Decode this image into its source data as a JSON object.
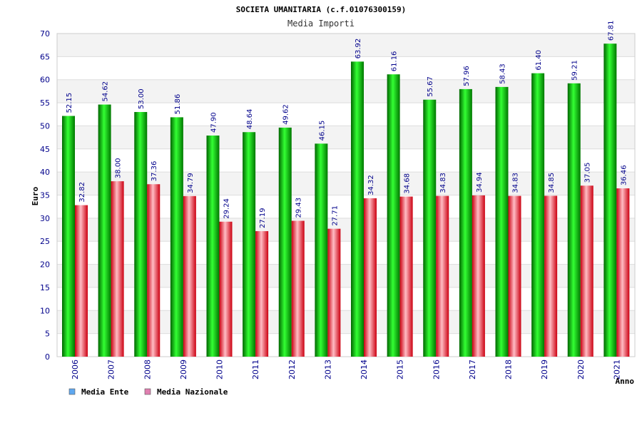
{
  "chart_data": {
    "type": "bar",
    "title": "SOCIETA UMANITARIA (c.f.01076300159)",
    "subtitle": "Media Importi",
    "xlabel": "Anno",
    "ylabel": "Euro",
    "ylim": [
      0,
      70
    ],
    "ytick_step": 5,
    "grid": true,
    "legend_position": "bottom-left",
    "categories": [
      "2006",
      "2007",
      "2008",
      "2009",
      "2010",
      "2011",
      "2012",
      "2013",
      "2014",
      "2015",
      "2016",
      "2017",
      "2018",
      "2019",
      "2020",
      "2021"
    ],
    "series": [
      {
        "name": "Media Ente",
        "color": "#00aa00",
        "legend_color": "#5fa8f0",
        "values": [
          52.15,
          54.62,
          53.0,
          51.86,
          47.9,
          48.64,
          49.62,
          46.15,
          63.92,
          61.16,
          55.67,
          57.96,
          58.43,
          61.4,
          59.21,
          67.81
        ],
        "labels": [
          "52.15",
          "54.62",
          "53.00",
          "51.86",
          "47.90",
          "48.64",
          "49.62",
          "46.15",
          "63.92",
          "61.16",
          "55.67",
          "57.96",
          "58.43",
          "61.40",
          "59.21",
          "67.81"
        ]
      },
      {
        "name": "Media Nazionale",
        "color": "#e8323c",
        "legend_color": "#e07fb0",
        "values": [
          32.82,
          38.0,
          37.36,
          34.79,
          29.24,
          27.19,
          29.43,
          27.71,
          34.32,
          34.68,
          34.83,
          34.94,
          34.83,
          34.85,
          37.05,
          36.46
        ],
        "labels": [
          "32.82",
          "38.00",
          "37.36",
          "34.79",
          "29.24",
          "27.19",
          "29.43",
          "27.71",
          "34.32",
          "34.68",
          "34.83",
          "34.94",
          "34.83",
          "34.85",
          "37.05",
          "36.46"
        ]
      }
    ]
  }
}
